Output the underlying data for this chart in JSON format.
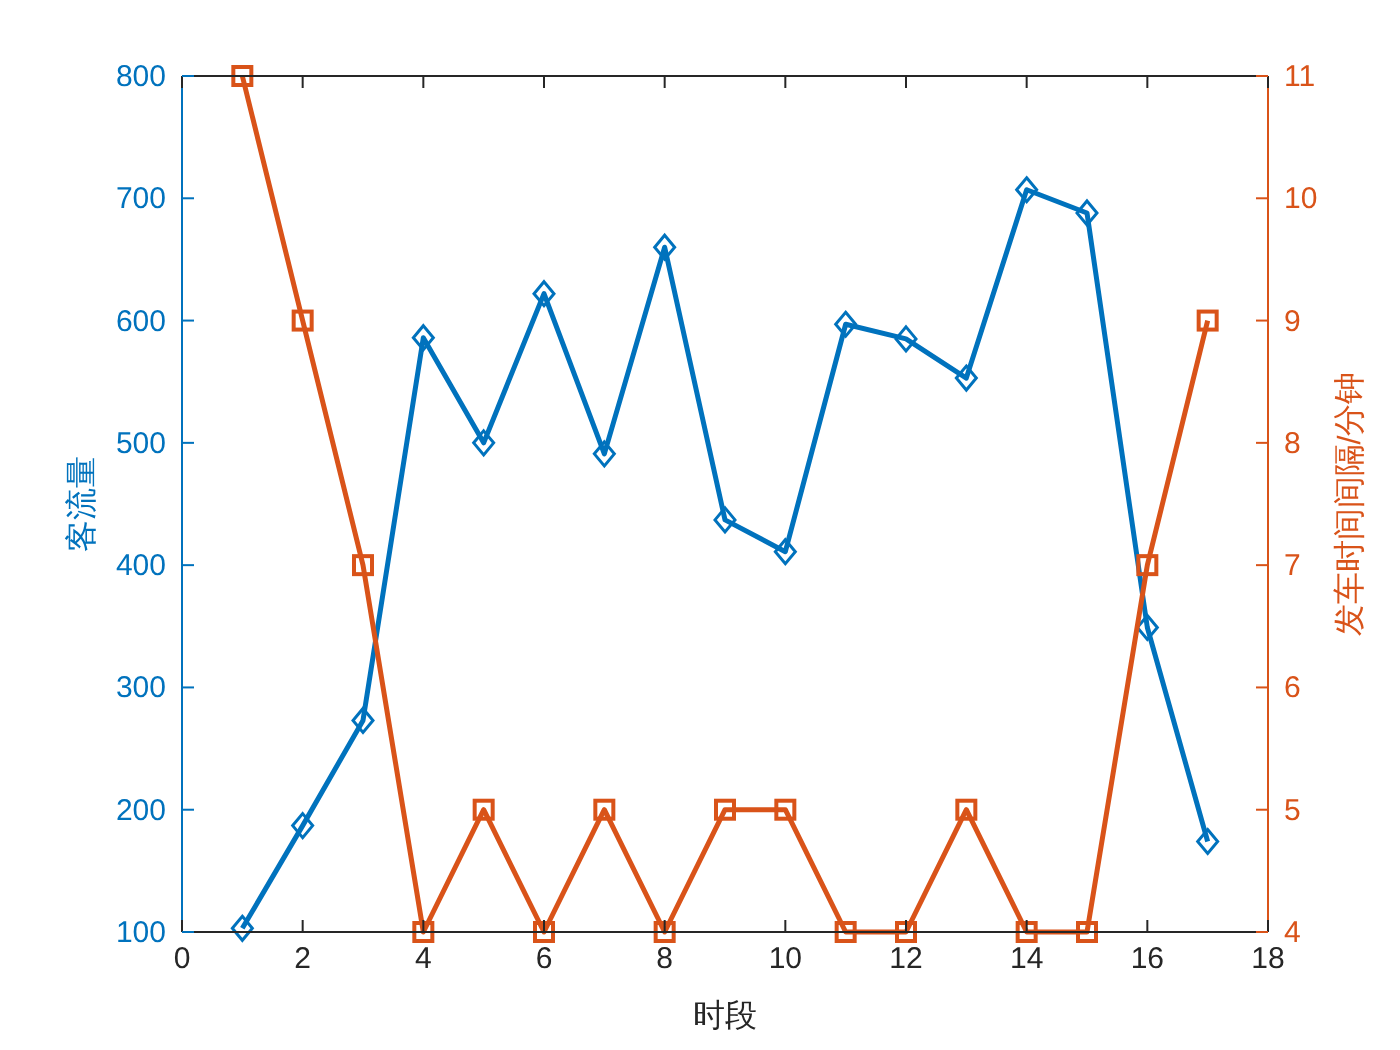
{
  "chart_data": {
    "type": "line",
    "xlabel": "时段",
    "ylabel": "客流量",
    "y2label": "发车时间间隔/分钟",
    "x": [
      1,
      2,
      3,
      4,
      5,
      6,
      7,
      8,
      9,
      10,
      11,
      12,
      13,
      14,
      15,
      16,
      17
    ],
    "xlim": [
      0,
      18
    ],
    "xticks": [
      0,
      2,
      4,
      6,
      8,
      10,
      12,
      14,
      16,
      18
    ],
    "ylim": [
      100,
      800
    ],
    "yticks": [
      100,
      200,
      300,
      400,
      500,
      600,
      700,
      800
    ],
    "y2lim": [
      4,
      11
    ],
    "y2ticks": [
      4,
      5,
      6,
      7,
      8,
      9,
      10,
      11
    ],
    "grid": false,
    "line_style": "solid",
    "series": [
      {
        "color": "#0072bd",
        "marker": "diamond",
        "values": [
          103,
          187,
          273,
          586,
          500,
          622,
          491,
          660,
          437,
          411,
          597,
          585,
          553,
          707,
          688,
          349,
          174
        ]
      },
      {
        "color": "#d95319",
        "marker": "square",
        "axis": "y2",
        "values": [
          11,
          9,
          7,
          4,
          5,
          4,
          5,
          4,
          5,
          5,
          4,
          4,
          5,
          4,
          4,
          7,
          9
        ]
      }
    ]
  }
}
